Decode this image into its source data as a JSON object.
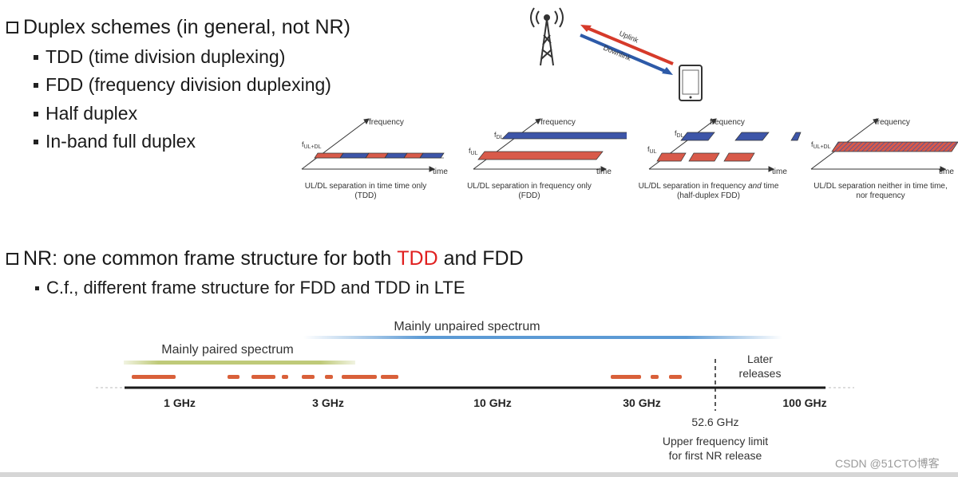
{
  "section1": {
    "heading": "Duplex schemes (in general, not NR)",
    "items": [
      "TDD (time division duplexing)",
      "FDD (frequency division duplexing)",
      "Half duplex",
      "In-band full duplex"
    ]
  },
  "tower_diagram": {
    "uplink": "Uplink",
    "downlink": "Downlink",
    "colors": {
      "uplink": "#d63a2a",
      "downlink": "#2d5aa8"
    }
  },
  "duplex_diagrams": [
    {
      "axis_y": "frequency",
      "axis_x": "time",
      "labels": [
        "fUL+DL"
      ],
      "caption": [
        "UL/DL separation in time time only",
        "(TDD)"
      ]
    },
    {
      "axis_y": "frequency",
      "axis_x": "time",
      "labels": [
        "fDL",
        "fUL"
      ],
      "caption": [
        "UL/DL separation in frequency only",
        "(FDD)"
      ]
    },
    {
      "axis_y": "frequency",
      "axis_x": "time",
      "labels": [
        "fDL",
        "fUL"
      ],
      "caption_pre": "UL/DL separation in frequency ",
      "caption_em": "and",
      "caption_post": " time",
      "caption2": "(half-duplex FDD)"
    },
    {
      "axis_y": "frequency",
      "axis_x": "time",
      "labels": [
        "fUL+DL"
      ],
      "caption": [
        "UL/DL separation neither in time time,",
        "nor frequency"
      ]
    }
  ],
  "section2": {
    "heading_pre": "NR: one common frame structure for both ",
    "heading_tdd": "TDD",
    "heading_post": " and FDD",
    "sub": "C.f., different frame structure for FDD and TDD in LTE"
  },
  "spectrum": {
    "unpaired_label": "Mainly unpaired spectrum",
    "paired_label": "Mainly paired spectrum",
    "later_label": "Later\nreleases",
    "ticks": [
      "1 GHz",
      "3 GHz",
      "10 GHz",
      "30 GHz",
      "100 GHz"
    ],
    "limit_value": "52.6 GHz",
    "limit_note_1": "Upper frequency limit",
    "limit_note_2": "for first NR release"
  },
  "watermark": "CSDN @51CTO博客",
  "colors": {
    "red": "#e02020",
    "band": "#d9603a",
    "paired": "#b8c46a",
    "unpaired": "#4a8fd0"
  }
}
